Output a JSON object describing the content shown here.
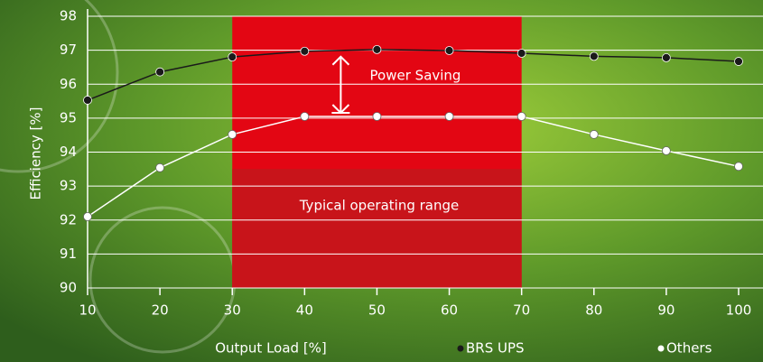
{
  "chart_data": {
    "type": "line",
    "x": [
      10,
      20,
      30,
      40,
      50,
      60,
      70,
      80,
      90,
      100
    ],
    "series": [
      {
        "name": "BRS UPS",
        "color": "#1a1a1a",
        "values": [
          95.53,
          96.36,
          96.8,
          96.97,
          97.02,
          96.99,
          96.91,
          96.82,
          96.78,
          96.67
        ]
      },
      {
        "name": "Others",
        "color": "#ffffff",
        "values": [
          92.1,
          93.54,
          94.52,
          95.05,
          95.05,
          95.05,
          95.05,
          94.52,
          94.04,
          93.58
        ]
      }
    ],
    "xlim": [
      10,
      100
    ],
    "xticks": [
      10,
      20,
      30,
      40,
      50,
      60,
      70,
      80,
      90,
      100
    ],
    "ylim": [
      90,
      98
    ],
    "yticks": [
      90,
      91,
      92,
      93,
      94,
      95,
      96,
      97,
      98
    ],
    "x_label": "Output Load [%]",
    "y_label": "Efficiency [%]",
    "highlight_range": [
      30,
      70
    ],
    "annotations": [
      "Power Saving",
      "Typical operating range"
    ],
    "grid": true
  }
}
